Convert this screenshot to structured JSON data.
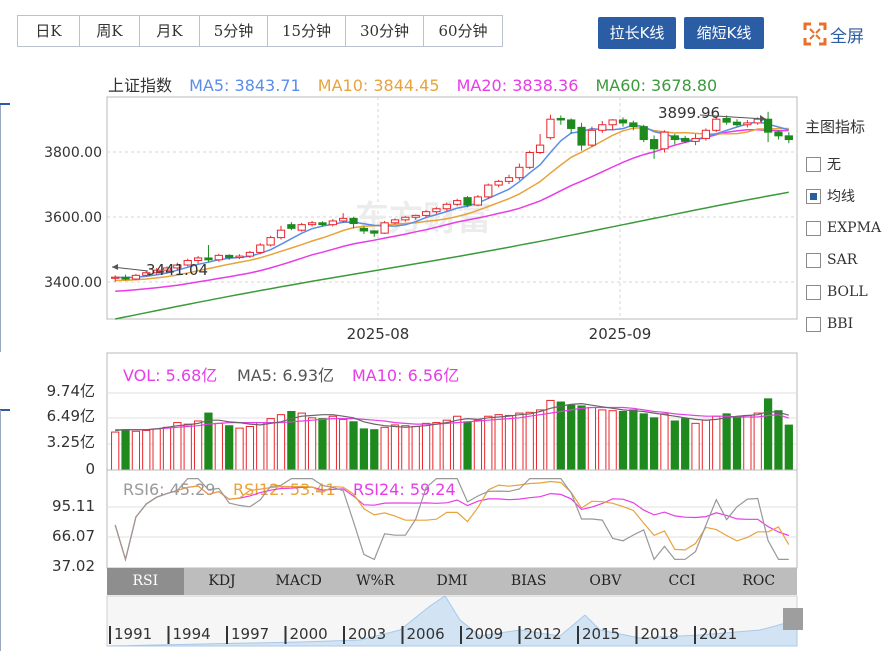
{
  "periods": [
    {
      "label": "日K",
      "active": true
    },
    {
      "label": "周K",
      "active": false
    },
    {
      "label": "月K",
      "active": false
    },
    {
      "label": "5分钟",
      "active": false
    },
    {
      "label": "15分钟",
      "active": false
    },
    {
      "label": "30分钟",
      "active": false
    },
    {
      "label": "60分钟",
      "active": false
    }
  ],
  "controls": {
    "stretch": "拉长K线",
    "shorten": "缩短K线",
    "fullscreen": "全屏"
  },
  "kline_legend": {
    "name": "上证指数",
    "ma5": "MA5: 3843.71",
    "ma10": "MA10: 3844.45",
    "ma20": "MA20: 3838.36",
    "ma60": "MA60: 3678.80"
  },
  "annotations": {
    "high": "3899.96",
    "low": "3441.04"
  },
  "price_axis": [
    "3800.00",
    "3600.00",
    "3400.00"
  ],
  "date_axis": [
    "2025-08",
    "2025-09"
  ],
  "watermark": "东方财富",
  "indicators": {
    "title": "主图指标",
    "items": [
      {
        "label": "无",
        "checked": false
      },
      {
        "label": "均线",
        "checked": true
      },
      {
        "label": "EXPMA",
        "checked": false
      },
      {
        "label": "SAR",
        "checked": false
      },
      {
        "label": "BOLL",
        "checked": false
      },
      {
        "label": "BBI",
        "checked": false
      }
    ]
  },
  "vol_legend": {
    "vol": "VOL: 5.68亿",
    "ma5": "MA5: 6.93亿",
    "ma10": "MA10: 6.56亿"
  },
  "vol_axis": [
    "9.74亿",
    "6.49亿",
    "3.25亿",
    "0"
  ],
  "rsi_legend": {
    "rsi6": "RSI6: 45.29",
    "rsi12": "RSI12: 53.41",
    "rsi24": "RSI24: 59.24"
  },
  "rsi_axis": [
    "95.11",
    "66.07",
    "37.02"
  ],
  "indicator_tabs": [
    {
      "label": "RSI",
      "active": true
    },
    {
      "label": "KDJ",
      "active": false
    },
    {
      "label": "MACD",
      "active": false
    },
    {
      "label": "W%R",
      "active": false
    },
    {
      "label": "DMI",
      "active": false
    },
    {
      "label": "BIAS",
      "active": false
    },
    {
      "label": "OBV",
      "active": false
    },
    {
      "label": "CCI",
      "active": false
    },
    {
      "label": "ROC",
      "active": false
    }
  ],
  "timeline_years": [
    "1991",
    "1994",
    "1997",
    "2000",
    "2003",
    "2006",
    "2009",
    "2012",
    "2015",
    "2018",
    "2021"
  ],
  "colors": {
    "up": "#e8262d",
    "down": "#1e8a1e",
    "ma5": "#5b8de8",
    "ma10": "#e8a33c",
    "ma20": "#e83ce8",
    "ma60": "#3c9a3c",
    "accent": "#2b5da5"
  },
  "chart_data": {
    "type": "candlestick",
    "candles": [
      [
        3450,
        3453,
        3441,
        3458
      ],
      [
        3453,
        3448,
        3444,
        3460
      ],
      [
        3448,
        3458,
        3445,
        3462
      ],
      [
        3458,
        3465,
        3455,
        3470
      ],
      [
        3465,
        3472,
        3460,
        3478
      ],
      [
        3472,
        3478,
        3466,
        3482
      ],
      [
        3478,
        3486,
        3472,
        3492
      ],
      [
        3486,
        3498,
        3482,
        3503
      ],
      [
        3498,
        3505,
        3490,
        3510
      ],
      [
        3505,
        3500,
        3494,
        3540
      ],
      [
        3500,
        3512,
        3495,
        3516
      ],
      [
        3512,
        3506,
        3500,
        3515
      ],
      [
        3506,
        3510,
        3502,
        3515
      ],
      [
        3510,
        3520,
        3505,
        3524
      ],
      [
        3520,
        3540,
        3515,
        3545
      ],
      [
        3540,
        3560,
        3536,
        3565
      ],
      [
        3560,
        3580,
        3555,
        3592
      ],
      [
        3595,
        3585,
        3580,
        3602
      ],
      [
        3580,
        3595,
        3576,
        3600
      ],
      [
        3595,
        3600,
        3590,
        3605
      ],
      [
        3600,
        3595,
        3590,
        3604
      ],
      [
        3595,
        3605,
        3590,
        3610
      ],
      [
        3605,
        3612,
        3600,
        3626
      ],
      [
        3612,
        3598,
        3585,
        3616
      ],
      [
        3585,
        3578,
        3570,
        3590
      ],
      [
        3578,
        3572,
        3562,
        3580
      ],
      [
        3572,
        3600,
        3570,
        3605
      ],
      [
        3600,
        3608,
        3596,
        3612
      ],
      [
        3608,
        3615,
        3603,
        3618
      ],
      [
        3615,
        3620,
        3608,
        3622
      ],
      [
        3620,
        3630,
        3615,
        3634
      ],
      [
        3630,
        3638,
        3625,
        3642
      ],
      [
        3638,
        3650,
        3632,
        3655
      ],
      [
        3650,
        3660,
        3645,
        3665
      ],
      [
        3668,
        3648,
        3642,
        3672
      ],
      [
        3648,
        3670,
        3645,
        3675
      ],
      [
        3670,
        3702,
        3665,
        3706
      ],
      [
        3702,
        3712,
        3696,
        3716
      ],
      [
        3712,
        3722,
        3705,
        3730
      ],
      [
        3722,
        3750,
        3715,
        3760
      ],
      [
        3750,
        3790,
        3745,
        3795
      ],
      [
        3790,
        3810,
        3786,
        3840
      ],
      [
        3830,
        3880,
        3825,
        3892
      ],
      [
        3882,
        3878,
        3865,
        3890
      ],
      [
        3878,
        3855,
        3840,
        3882
      ],
      [
        3858,
        3810,
        3795,
        3870
      ],
      [
        3810,
        3850,
        3805,
        3860
      ],
      [
        3850,
        3865,
        3843,
        3875
      ],
      [
        3865,
        3878,
        3850,
        3880
      ],
      [
        3878,
        3870,
        3860,
        3885
      ],
      [
        3870,
        3860,
        3850,
        3876
      ],
      [
        3860,
        3825,
        3818,
        3865
      ],
      [
        3825,
        3800,
        3773,
        3836
      ],
      [
        3800,
        3845,
        3790,
        3850
      ],
      [
        3835,
        3825,
        3812,
        3840
      ],
      [
        3828,
        3820,
        3815,
        3835
      ],
      [
        3820,
        3828,
        3810,
        3840
      ],
      [
        3828,
        3850,
        3822,
        3855
      ],
      [
        3850,
        3880,
        3845,
        3885
      ],
      [
        3882,
        3872,
        3865,
        3890
      ],
      [
        3872,
        3865,
        3860,
        3880
      ],
      [
        3865,
        3870,
        3858,
        3878
      ],
      [
        3870,
        3880,
        3865,
        3885
      ],
      [
        3880,
        3845,
        3818,
        3900
      ],
      [
        3845,
        3835,
        3825,
        3850
      ],
      [
        3835,
        3825,
        3815,
        3845
      ]
    ],
    "volumes": [
      4.8,
      5.1,
      4.9,
      5.0,
      5.2,
      5.4,
      6.0,
      5.8,
      6.2,
      7.2,
      5.9,
      5.6,
      5.3,
      5.5,
      6.0,
      6.5,
      7.0,
      7.4,
      7.2,
      6.6,
      6.5,
      6.8,
      6.4,
      6.1,
      5.2,
      5.1,
      5.4,
      5.7,
      5.6,
      5.5,
      5.9,
      6.0,
      6.3,
      6.8,
      6.1,
      6.3,
      6.8,
      7.0,
      6.9,
      7.2,
      7.3,
      7.6,
      8.8,
      8.6,
      8.2,
      8.1,
      7.9,
      7.6,
      7.5,
      7.4,
      7.6,
      7.1,
      6.6,
      7.1,
      6.2,
      6.5,
      5.9,
      6.3,
      6.8,
      7.1,
      6.7,
      6.9,
      7.2,
      9.0,
      7.5,
      5.68
    ],
    "volume_ma5": [
      5.0,
      5.1,
      5.1,
      5.1,
      5.2,
      5.4,
      5.6,
      5.7,
      5.9,
      6.3,
      6.3,
      6.1,
      6.0,
      5.8,
      5.7,
      5.9,
      6.1,
      6.5,
      6.8,
      6.9,
      7.0,
      7.0,
      6.8,
      6.6,
      6.1,
      5.8,
      5.6,
      5.5,
      5.4,
      5.5,
      5.6,
      5.8,
      6.0,
      6.3,
      6.5,
      6.4,
      6.6,
      6.7,
      6.8,
      7.0,
      7.1,
      7.4,
      7.8,
      8.1,
      8.3,
      8.4,
      8.2,
      8.0,
      7.8,
      7.6,
      7.5,
      7.4,
      7.2,
      7.0,
      6.8,
      6.6,
      6.4,
      6.3,
      6.4,
      6.6,
      6.8,
      6.9,
      7.0,
      7.4,
      7.3,
      6.93
    ],
    "volume_ma10": [
      5.1,
      5.1,
      5.1,
      5.1,
      5.2,
      5.3,
      5.4,
      5.5,
      5.6,
      5.8,
      5.9,
      6.0,
      6.0,
      6.0,
      6.0,
      6.0,
      6.0,
      6.1,
      6.2,
      6.3,
      6.4,
      6.5,
      6.5,
      6.5,
      6.4,
      6.3,
      6.2,
      6.0,
      5.9,
      5.8,
      5.8,
      5.8,
      5.9,
      6.0,
      6.1,
      6.2,
      6.3,
      6.4,
      6.5,
      6.6,
      6.8,
      7.0,
      7.2,
      7.4,
      7.6,
      7.8,
      7.9,
      7.9,
      7.9,
      7.9,
      7.8,
      7.6,
      7.4,
      7.3,
      7.1,
      7.0,
      6.9,
      6.8,
      6.8,
      6.8,
      6.7,
      6.7,
      6.7,
      6.9,
      7.0,
      6.56
    ],
    "ylim_price": [
      3340,
      3940
    ],
    "ylim_volume": [
      0,
      9.74
    ]
  }
}
